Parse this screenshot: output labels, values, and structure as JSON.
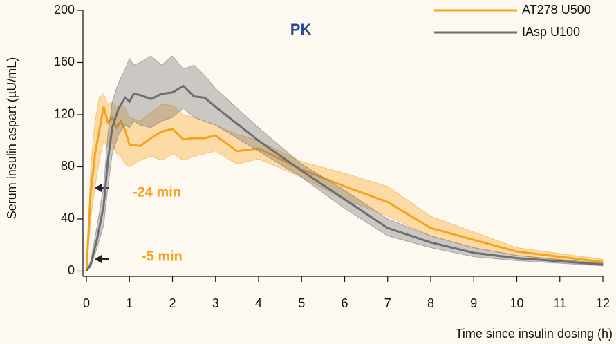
{
  "chart_data": {
    "type": "line",
    "title": "PK",
    "x_label": "Time since insulin dosing (h)",
    "y_label": "Serum insulin aspart (µU/mL)",
    "annotations": [
      "-24 min",
      "-5 min"
    ],
    "xlim": [
      0,
      12
    ],
    "xticks": [
      0,
      1,
      2,
      3,
      4,
      5,
      6,
      7,
      8,
      9,
      10,
      11,
      12
    ],
    "ylim": [
      -4,
      200
    ],
    "yticks": [
      0,
      40,
      80,
      120,
      160,
      200
    ],
    "series": [
      {
        "name": "AT278 U500",
        "color": "#f5a31c",
        "x": [
          0,
          0.1,
          0.2,
          0.3,
          0.4,
          0.5,
          0.6,
          0.7,
          0.8,
          0.9,
          1,
          1.25,
          1.5,
          1.75,
          2,
          2.25,
          2.5,
          2.75,
          3,
          3.5,
          4,
          5,
          6,
          7,
          8,
          9,
          10,
          12
        ],
        "values": [
          0,
          60,
          90,
          108,
          126,
          114,
          118,
          110,
          115,
          108,
          97,
          96,
          102,
          107,
          109,
          101,
          102,
          102,
          104,
          92,
          94,
          78,
          65,
          53,
          33,
          24,
          15,
          7
        ],
        "upper": [
          0,
          80,
          115,
          133,
          136,
          128,
          130,
          125,
          128,
          125,
          118,
          115,
          122,
          128,
          127,
          120,
          118,
          115,
          112,
          105,
          100,
          84,
          75,
          65,
          42,
          30,
          18,
          9
        ],
        "lower": [
          0,
          40,
          65,
          85,
          100,
          95,
          98,
          90,
          88,
          82,
          80,
          85,
          88,
          85,
          90,
          85,
          88,
          90,
          92,
          82,
          86,
          72,
          55,
          42,
          27,
          18,
          12,
          5
        ]
      },
      {
        "name": "IAsp U100",
        "color": "#6d6e71",
        "x": [
          0,
          0.1,
          0.25,
          0.4,
          0.5,
          0.6,
          0.75,
          0.9,
          1,
          1.1,
          1.25,
          1.5,
          1.75,
          2,
          2.25,
          2.5,
          2.75,
          3,
          4,
          5,
          6,
          7,
          8,
          9,
          10,
          12
        ],
        "values": [
          0,
          5,
          25,
          50,
          85,
          110,
          125,
          133,
          130,
          136,
          135,
          132,
          136,
          137,
          142,
          134,
          133,
          126,
          100,
          77,
          55,
          33,
          22,
          14,
          10,
          5
        ],
        "upper": [
          0,
          8,
          35,
          65,
          105,
          130,
          145,
          155,
          163,
          158,
          160,
          165,
          158,
          165,
          155,
          158,
          150,
          140,
          110,
          82,
          62,
          40,
          27,
          18,
          12,
          6
        ],
        "lower": [
          0,
          3,
          18,
          35,
          65,
          90,
          105,
          112,
          110,
          115,
          112,
          110,
          115,
          118,
          125,
          118,
          115,
          112,
          92,
          72,
          48,
          27,
          18,
          11,
          8,
          4
        ]
      }
    ]
  }
}
